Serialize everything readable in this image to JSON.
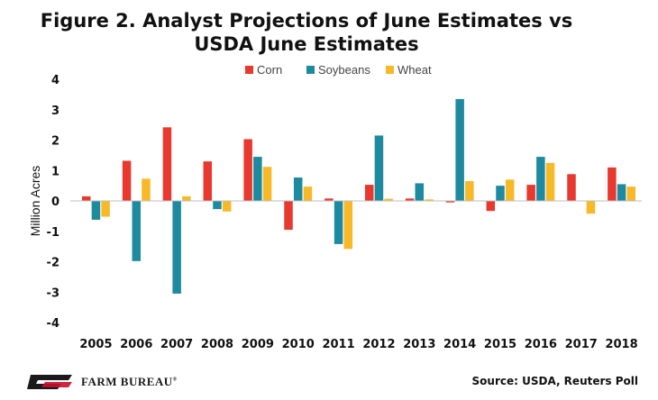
{
  "title_line1": "Figure 2. Analyst Projections of June Estimates vs",
  "title_line2": "USDA June Estimates",
  "source": "Source: USDA, Reuters Poll",
  "logo_text": "FARM BUREAU",
  "logo_mark": "®",
  "colors": {
    "corn": "#e8392e",
    "soybeans": "#1e8aa0",
    "wheat": "#f7b928"
  },
  "chart_data": {
    "type": "bar",
    "title": "Figure 2. Analyst Projections of June Estimates vs USDA June Estimates",
    "ylabel": "Million Acres",
    "xlabel": "",
    "ylim": [
      -4,
      4
    ],
    "yticks": [
      4,
      3,
      2,
      1,
      0,
      -1,
      -2,
      -3,
      -4
    ],
    "legend": "top",
    "grid": false,
    "categories": [
      "2005",
      "2006",
      "2007",
      "2008",
      "2009",
      "2010",
      "2011",
      "2012",
      "2013",
      "2014",
      "2015",
      "2016",
      "2017",
      "2018"
    ],
    "series": [
      {
        "name": "Corn",
        "color": "#e8392e",
        "values": [
          0.15,
          1.32,
          2.42,
          1.3,
          2.03,
          -0.95,
          0.08,
          0.53,
          0.08,
          -0.05,
          -0.33,
          0.53,
          0.88,
          1.1
        ]
      },
      {
        "name": "Soybeans",
        "color": "#1e8aa0",
        "values": [
          -0.62,
          -1.98,
          -3.05,
          -0.27,
          1.45,
          0.77,
          -1.42,
          2.15,
          0.58,
          3.35,
          0.5,
          1.45,
          0.0,
          0.55
        ]
      },
      {
        "name": "Wheat",
        "color": "#f7b928",
        "values": [
          -0.52,
          0.73,
          0.15,
          -0.35,
          1.12,
          0.47,
          -1.58,
          0.07,
          0.05,
          0.65,
          0.7,
          1.25,
          -0.42,
          0.47
        ]
      }
    ]
  }
}
